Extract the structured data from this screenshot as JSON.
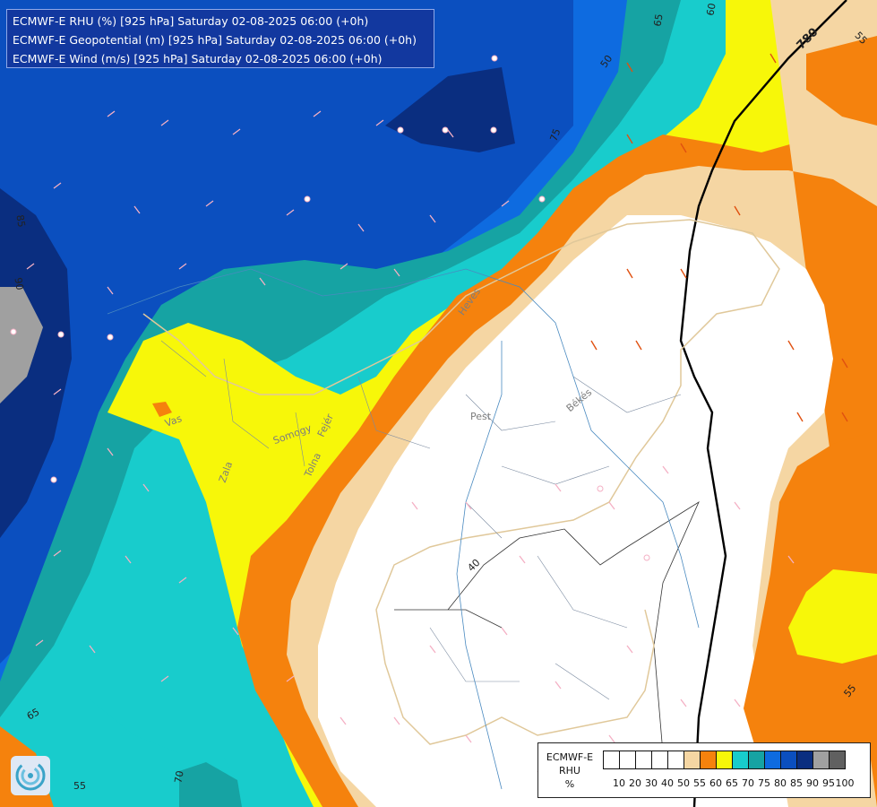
{
  "titles": [
    "ECMWF-E RHU (%) [925 hPa] Saturday 02-08-2025 06:00 (+0h)",
    "ECMWF-E Geopotential (m) [925 hPa] Saturday 02-08-2025 06:00 (+0h)",
    "ECMWF-E Wind (m/s) [925 hPa] Saturday 02-08-2025 06:00 (+0h)"
  ],
  "legend": {
    "name_line1": "ECMWF-E",
    "name_line2": "RHU",
    "name_line3": "%",
    "colors": [
      "#ffffff",
      "#ffffff",
      "#ffffff",
      "#ffffff",
      "#ffffff",
      "#f5d6a3",
      "#f5820d",
      "#f7f709",
      "#18cccc",
      "#16a3a3",
      "#0e6be0",
      "#0b4fbf",
      "#0a2e80",
      "#a0a0a0",
      "#606060"
    ],
    "ticks": [
      "10",
      "20",
      "30",
      "40",
      "50",
      "55",
      "60",
      "65",
      "70",
      "75",
      "80",
      "85",
      "90",
      "95",
      "100"
    ]
  },
  "colors": {
    "deep_blue": "#0a2e80",
    "dark_blue": "#0b4fbf",
    "blue": "#0e6be0",
    "dark_teal": "#16a3a3",
    "teal": "#18cccc",
    "yellow": "#f7f709",
    "orange": "#f5820d",
    "tan": "#f5d6a3",
    "white": "#ffffff",
    "grey": "#a0a0a0"
  },
  "region_labels": [
    "Vas",
    "Zala",
    "Somogy",
    "Tolna",
    "Fejér",
    "Pest",
    "Heves",
    "Békés"
  ],
  "contour_labels": [
    "780",
    "65",
    "60",
    "50",
    "75",
    "85",
    "90",
    "40",
    "65",
    "55",
    "70",
    "55",
    "55",
    "50"
  ],
  "logo_icon": "ecmwf-swirl-logo-icon"
}
